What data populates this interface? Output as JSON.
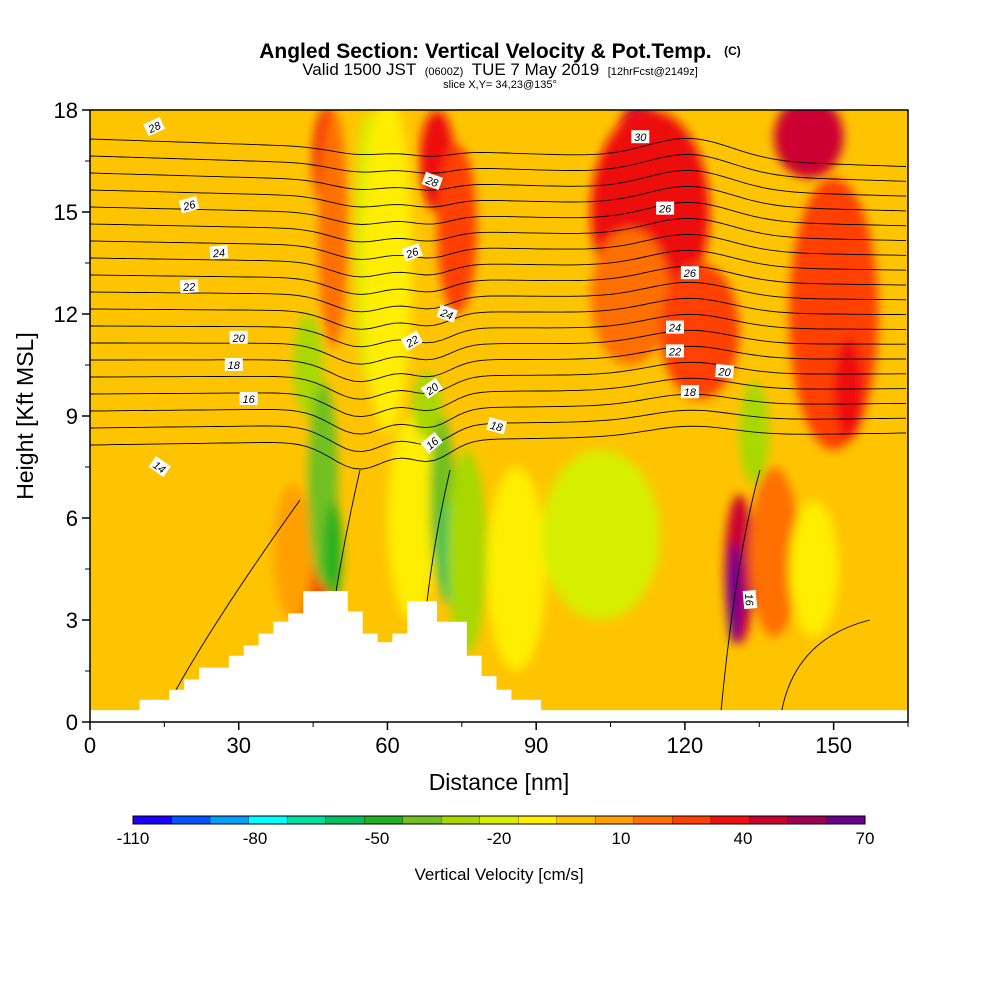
{
  "chart_data": {
    "type": "heatmap",
    "title": "Angled Section: Vertical Velocity & Pot.Temp.",
    "title_suffix": "(C)",
    "subtitle": {
      "valid_prefix": "Valid 1500 JST",
      "utc": "(0600Z)",
      "date": "TUE 7 May 2019",
      "forecast": "[12hrFcst@2149z]"
    },
    "slice_text": "slice X,Y= 34,23@135°",
    "xlabel": "Distance [nm]",
    "ylabel": "Height [Kft MSL]",
    "xlim": [
      0,
      165
    ],
    "ylim": [
      0,
      18
    ],
    "xticks": [
      0,
      30,
      60,
      90,
      120,
      150
    ],
    "xtick_labels": [
      "0",
      "30",
      "60",
      "90",
      "120",
      "150"
    ],
    "yticks": [
      0,
      3,
      6,
      9,
      12,
      15,
      18
    ],
    "ytick_labels": [
      "0",
      "3",
      "6",
      "9",
      "12",
      "15",
      "18"
    ],
    "colorbar": {
      "title": "Vertical Velocity [cm/s]",
      "bins": [
        -110,
        -100,
        -90,
        -80,
        -70,
        -60,
        -50,
        -40,
        -30,
        -20,
        -10,
        0,
        10,
        20,
        30,
        40,
        50,
        60,
        70
      ],
      "colors": [
        "#1a00ff",
        "#0055ff",
        "#00a0ff",
        "#00ffff",
        "#00e0a0",
        "#00c060",
        "#20b020",
        "#70c020",
        "#a8d800",
        "#d8ee00",
        "#ffee00",
        "#ffc400",
        "#ffa000",
        "#ff7000",
        "#ff4000",
        "#ee1010",
        "#cc0030",
        "#a00050",
        "#6a0090"
      ],
      "labels": [
        "-110",
        "-80",
        "-50",
        "-20",
        "10",
        "40",
        "70"
      ],
      "label_values": [
        -110,
        -80,
        -50,
        -20,
        10,
        40,
        70
      ]
    },
    "terrain": [
      [
        0,
        0.35
      ],
      [
        10,
        0.35
      ],
      [
        10,
        0.65
      ],
      [
        16,
        0.65
      ],
      [
        16,
        0.95
      ],
      [
        19,
        0.95
      ],
      [
        19,
        1.25
      ],
      [
        22,
        1.25
      ],
      [
        22,
        1.6
      ],
      [
        28,
        1.6
      ],
      [
        28,
        1.95
      ],
      [
        31,
        1.95
      ],
      [
        31,
        2.25
      ],
      [
        34,
        2.25
      ],
      [
        34,
        2.6
      ],
      [
        37,
        2.6
      ],
      [
        37,
        2.95
      ],
      [
        40,
        2.95
      ],
      [
        40,
        3.2
      ],
      [
        43,
        3.2
      ],
      [
        43,
        3.85
      ],
      [
        52,
        3.85
      ],
      [
        52,
        3.25
      ],
      [
        55,
        3.25
      ],
      [
        55,
        2.6
      ],
      [
        58,
        2.6
      ],
      [
        58,
        2.35
      ],
      [
        61,
        2.35
      ],
      [
        61,
        2.6
      ],
      [
        64,
        2.6
      ],
      [
        64,
        3.55
      ],
      [
        70,
        3.55
      ],
      [
        70,
        2.95
      ],
      [
        76,
        2.95
      ],
      [
        76,
        1.95
      ],
      [
        79,
        1.95
      ],
      [
        79,
        1.35
      ],
      [
        82,
        1.35
      ],
      [
        82,
        0.95
      ],
      [
        85,
        0.95
      ],
      [
        85,
        0.65
      ],
      [
        91,
        0.65
      ],
      [
        91,
        0.35
      ],
      [
        165,
        0.35
      ]
    ],
    "velocity_fields": [
      {
        "x": 48,
        "y": 16.5,
        "rx": 3,
        "ry": 1.6,
        "value": 40
      },
      {
        "x": 49,
        "y": 14.5,
        "rx": 3,
        "ry": 3.5,
        "value": 20
      },
      {
        "x": 45,
        "y": 4.0,
        "rx": 4,
        "ry": 1.2,
        "value": 30
      },
      {
        "x": 41,
        "y": 5.0,
        "rx": 4,
        "ry": 2,
        "value": 15
      },
      {
        "x": 44,
        "y": 10.5,
        "rx": 3,
        "ry": 1.5,
        "value": -30
      },
      {
        "x": 47,
        "y": 7.0,
        "rx": 3,
        "ry": 3,
        "value": -40
      },
      {
        "x": 49,
        "y": 5.0,
        "rx": 1.8,
        "ry": 1.5,
        "value": -50
      },
      {
        "x": 56,
        "y": 14.0,
        "rx": 2.5,
        "ry": 4,
        "value": -20
      },
      {
        "x": 60,
        "y": 13.5,
        "rx": 5,
        "ry": 5,
        "value": -10
      },
      {
        "x": 65,
        "y": 6.0,
        "rx": 5,
        "ry": 3,
        "value": -10
      },
      {
        "x": 70,
        "y": 16.5,
        "rx": 3.5,
        "ry": 1.5,
        "value": 40
      },
      {
        "x": 74,
        "y": 14.5,
        "rx": 4,
        "ry": 2.5,
        "value": 30
      },
      {
        "x": 68,
        "y": 9.3,
        "rx": 3,
        "ry": 1.0,
        "value": -30
      },
      {
        "x": 71,
        "y": 6.5,
        "rx": 2.5,
        "ry": 2.5,
        "value": -40
      },
      {
        "x": 72,
        "y": 5.0,
        "rx": 1.6,
        "ry": 1.5,
        "value": -60
      },
      {
        "x": 76,
        "y": 5.0,
        "rx": 4,
        "ry": 3,
        "value": -30
      },
      {
        "x": 86,
        "y": 4.5,
        "rx": 6,
        "ry": 3,
        "value": -10
      },
      {
        "x": 103,
        "y": 5.5,
        "rx": 12,
        "ry": 2.5,
        "value": -20
      },
      {
        "x": 111,
        "y": 17.0,
        "rx": 5,
        "ry": 1.2,
        "value": 50
      },
      {
        "x": 113,
        "y": 15.0,
        "rx": 12,
        "ry": 3,
        "value": 40
      },
      {
        "x": 109,
        "y": 12.5,
        "rx": 8,
        "ry": 2,
        "value": 20
      },
      {
        "x": 123,
        "y": 11.5,
        "rx": 8,
        "ry": 2,
        "value": 30
      },
      {
        "x": 145,
        "y": 17.2,
        "rx": 7,
        "ry": 1.2,
        "value": 50
      },
      {
        "x": 150,
        "y": 12.0,
        "rx": 9,
        "ry": 4,
        "value": 30
      },
      {
        "x": 153,
        "y": 9.8,
        "rx": 3,
        "ry": 1.5,
        "value": 40
      },
      {
        "x": 134,
        "y": 8.5,
        "rx": 3,
        "ry": 1.5,
        "value": -30
      },
      {
        "x": 131,
        "y": 4.5,
        "rx": 3,
        "ry": 2.2,
        "value": 50
      },
      {
        "x": 130,
        "y": 3.8,
        "rx": 1.5,
        "ry": 1.5,
        "value": 70
      },
      {
        "x": 138,
        "y": 5.0,
        "rx": 5,
        "ry": 2.5,
        "value": 20
      },
      {
        "x": 146,
        "y": 4.5,
        "rx": 5,
        "ry": 2,
        "value": -10
      },
      {
        "x": 160,
        "y": 2.5,
        "rx": 4,
        "ry": 2,
        "value": 0
      }
    ],
    "contour_labels": [
      {
        "x": 13,
        "y": 17.5,
        "text": "28",
        "rot": 25
      },
      {
        "x": 20,
        "y": 15.2,
        "text": "26",
        "rot": 15
      },
      {
        "x": 26,
        "y": 13.8,
        "text": "24",
        "rot": 5
      },
      {
        "x": 20,
        "y": 12.8,
        "text": "22",
        "rot": 3
      },
      {
        "x": 30,
        "y": 11.3,
        "text": "20",
        "rot": 0
      },
      {
        "x": 29,
        "y": 10.5,
        "text": "18",
        "rot": 0
      },
      {
        "x": 32,
        "y": 9.5,
        "text": "16",
        "rot": 0
      },
      {
        "x": 14,
        "y": 7.5,
        "text": "14",
        "rot": -35
      },
      {
        "x": 69,
        "y": 15.9,
        "text": "28",
        "rot": -20
      },
      {
        "x": 65,
        "y": 13.8,
        "text": "26",
        "rot": 20
      },
      {
        "x": 72,
        "y": 12.0,
        "text": "24",
        "rot": -20
      },
      {
        "x": 65,
        "y": 11.2,
        "text": "22",
        "rot": 30
      },
      {
        "x": 69,
        "y": 9.8,
        "text": "20",
        "rot": 35
      },
      {
        "x": 69,
        "y": 8.2,
        "text": "16",
        "rot": 40
      },
      {
        "x": 82,
        "y": 8.7,
        "text": "18",
        "rot": -15
      },
      {
        "x": 111,
        "y": 17.2,
        "text": "30",
        "rot": 0
      },
      {
        "x": 116,
        "y": 15.1,
        "text": "26",
        "rot": 0
      },
      {
        "x": 121,
        "y": 13.2,
        "text": "26",
        "rot": 0
      },
      {
        "x": 118,
        "y": 11.6,
        "text": "24",
        "rot": 0
      },
      {
        "x": 118,
        "y": 10.9,
        "text": "22",
        "rot": 0
      },
      {
        "x": 128,
        "y": 10.3,
        "text": "20",
        "rot": -5
      },
      {
        "x": 121,
        "y": 9.7,
        "text": "18",
        "rot": 0
      },
      {
        "x": 133,
        "y": 3.6,
        "text": "16",
        "rot": -85
      }
    ]
  }
}
